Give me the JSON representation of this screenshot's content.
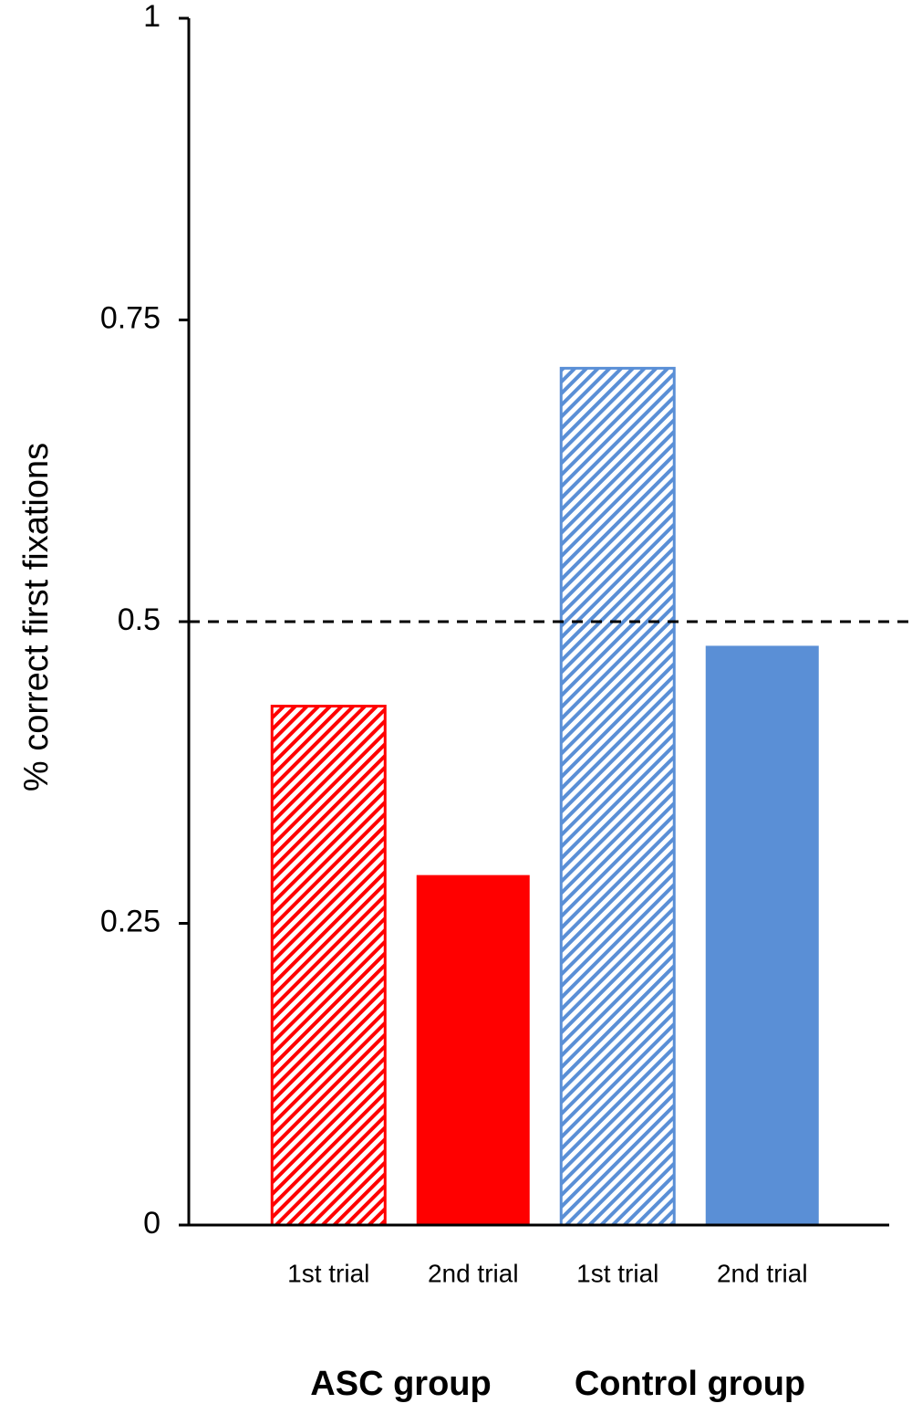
{
  "chart_data": {
    "type": "bar",
    "ylabel": "% correct first fixations",
    "ylim": [
      0,
      1
    ],
    "yticks": [
      "0",
      "0.25",
      "0.5",
      "0.75",
      "1"
    ],
    "reference_line": {
      "value": 0.5,
      "style": "dashed"
    },
    "groups": [
      "ASC group",
      "Control group"
    ],
    "bars": [
      {
        "category": "1st trial",
        "group": "ASC group",
        "value": 0.43,
        "color": "#ff0000",
        "fill": "hatched"
      },
      {
        "category": "2nd trial",
        "group": "ASC group",
        "value": 0.29,
        "color": "#ff0000",
        "fill": "solid"
      },
      {
        "category": "1st trial",
        "group": "Control group",
        "value": 0.71,
        "color": "#5a8fd6",
        "fill": "hatched"
      },
      {
        "category": "2nd trial",
        "group": "Control group",
        "value": 0.48,
        "color": "#5a8fd6",
        "fill": "solid"
      }
    ]
  }
}
